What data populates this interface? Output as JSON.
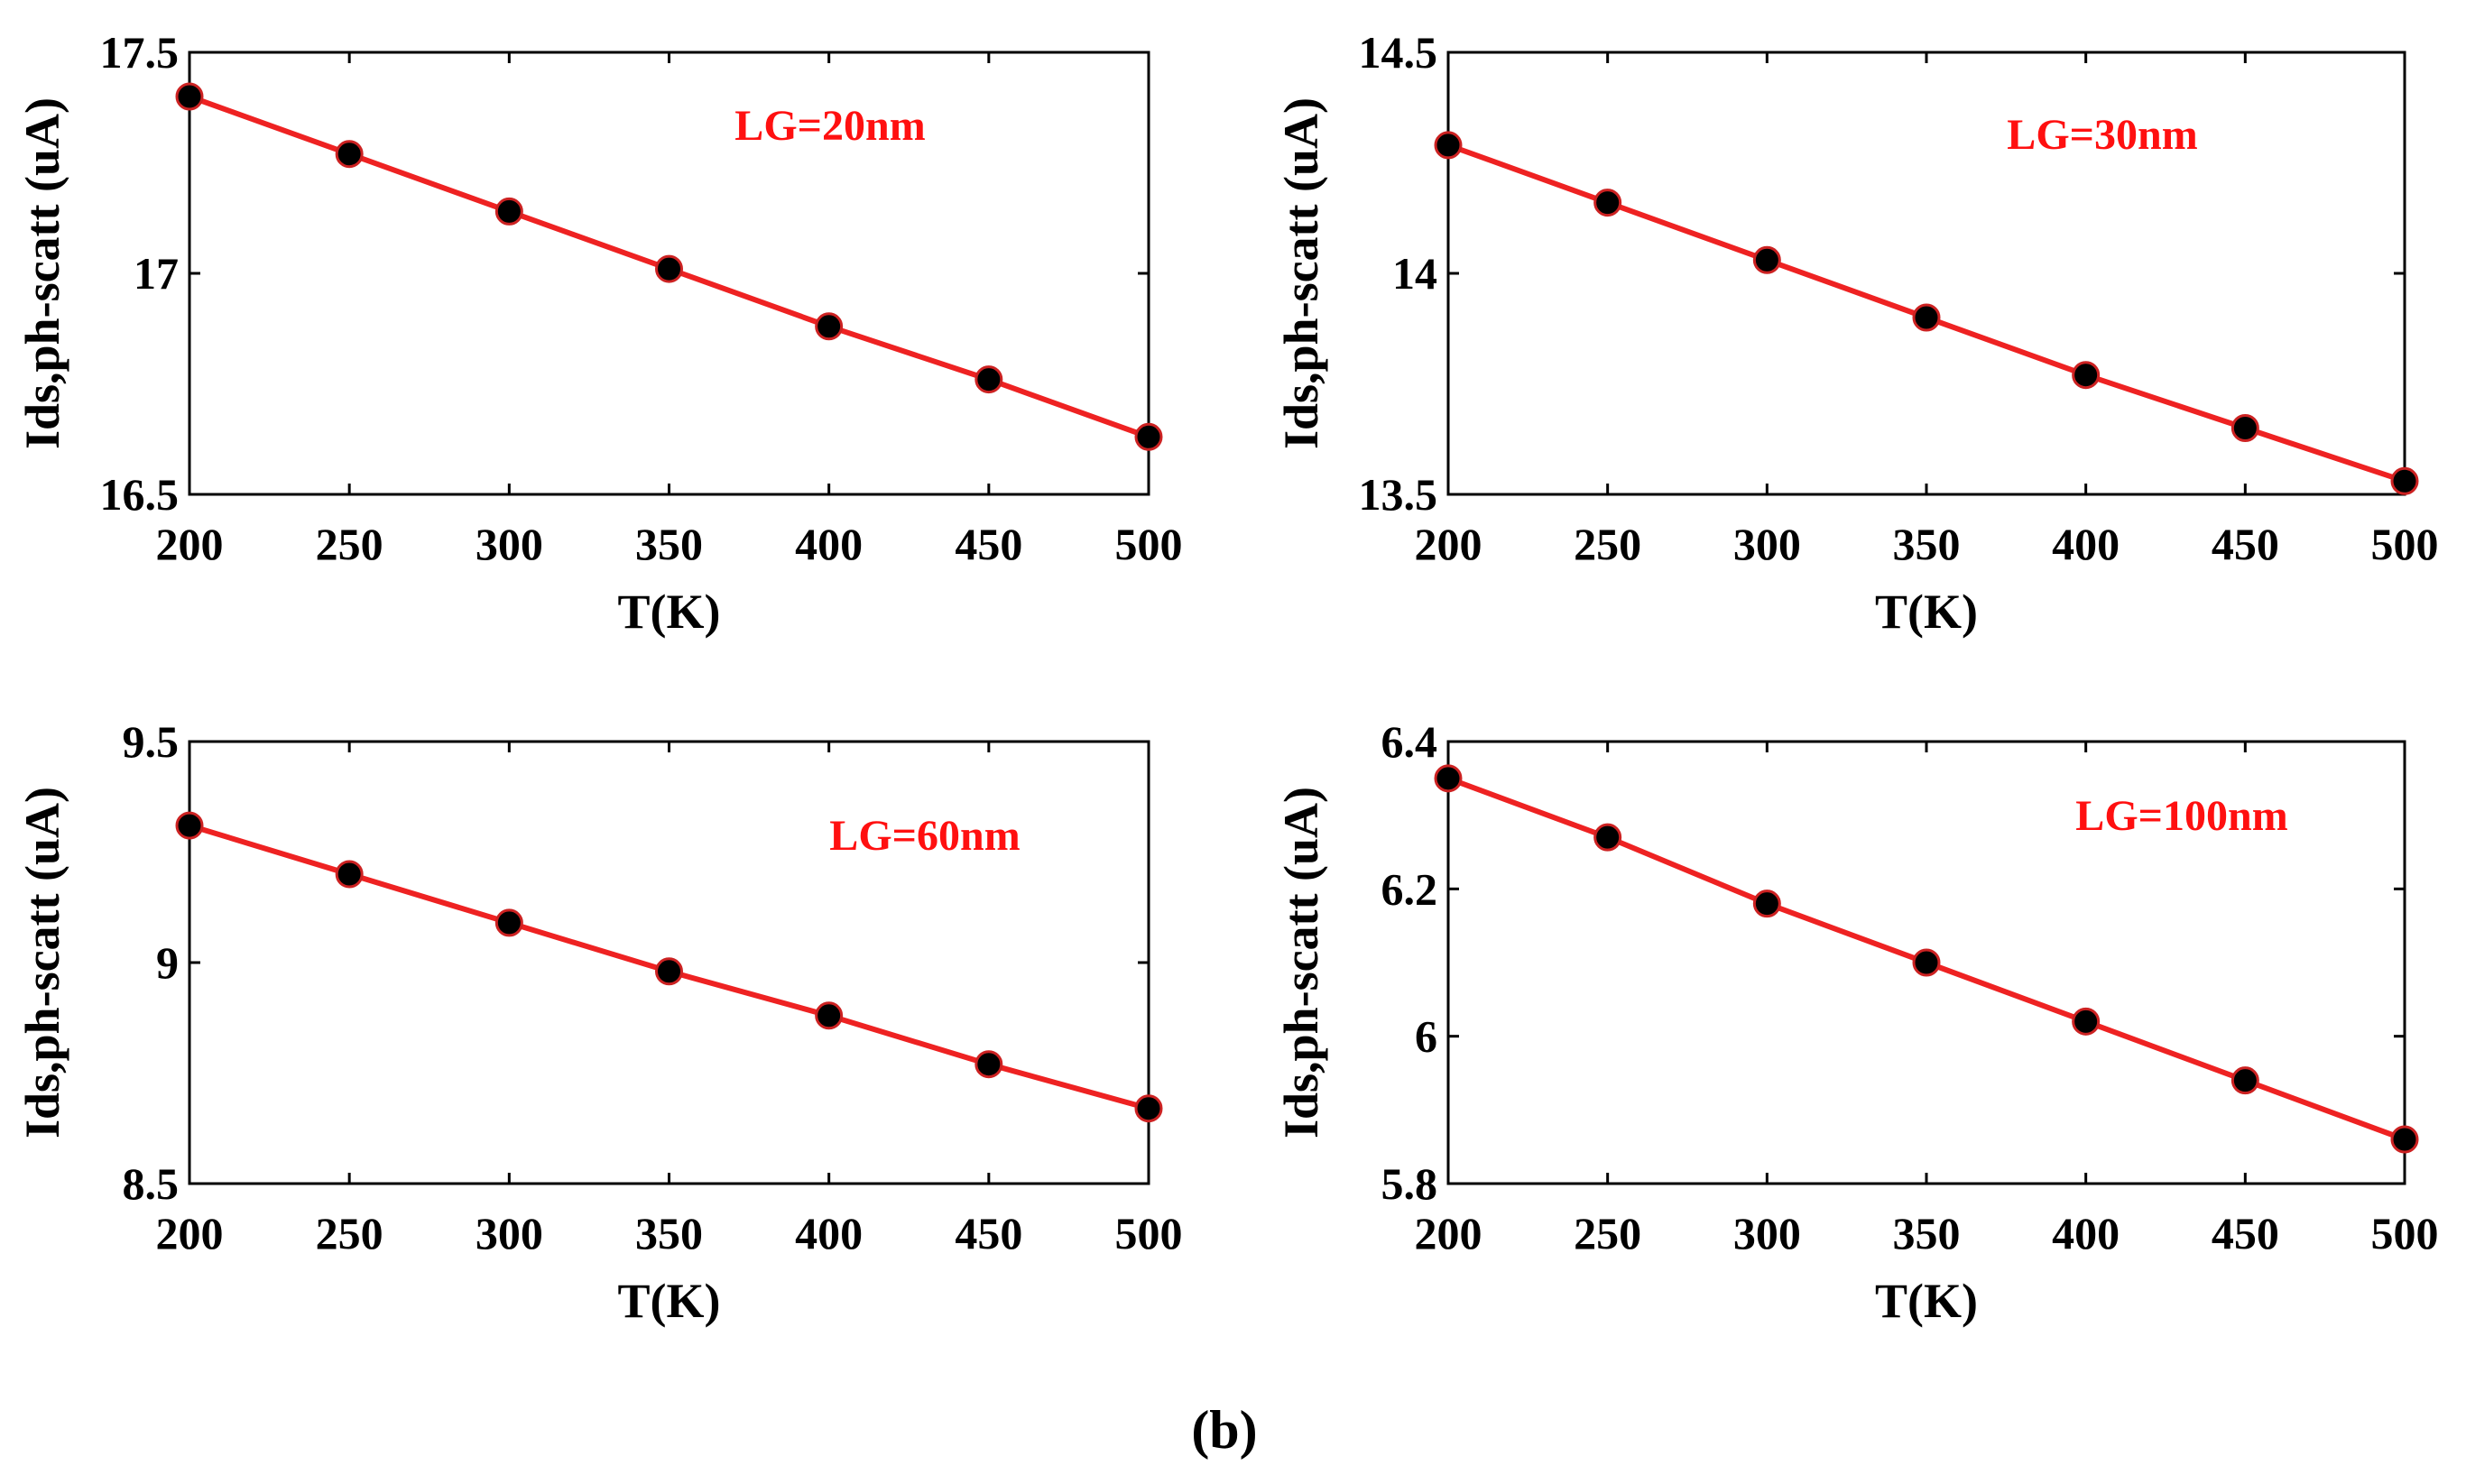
{
  "caption": "(b)",
  "chart_data": [
    {
      "type": "line",
      "annotation": "LG=20nm",
      "xlabel": "T(K)",
      "ylabel": "Ids,ph-scatt (uA)",
      "xlim": [
        200,
        500
      ],
      "ylim": [
        16.5,
        17.5
      ],
      "xticks": [
        200,
        250,
        300,
        350,
        400,
        450,
        500
      ],
      "xtick_labels": [
        "200",
        "250",
        "300",
        "350",
        "400",
        "450",
        "500"
      ],
      "yticks": [
        16.5,
        17,
        17.5
      ],
      "ytick_labels": [
        "16.5",
        "17",
        "17.5"
      ],
      "x": [
        200,
        250,
        300,
        350,
        400,
        450,
        500
      ],
      "y": [
        17.4,
        17.27,
        17.14,
        17.01,
        16.88,
        16.76,
        16.63
      ],
      "line_color": "#ee2222",
      "marker_color": "#000000"
    },
    {
      "type": "line",
      "annotation": "LG=30nm",
      "xlabel": "T(K)",
      "ylabel": "Ids,ph-scatt (uA)",
      "xlim": [
        200,
        500
      ],
      "ylim": [
        13.5,
        14.5
      ],
      "xticks": [
        200,
        250,
        300,
        350,
        400,
        450,
        500
      ],
      "xtick_labels": [
        "200",
        "250",
        "300",
        "350",
        "400",
        "450",
        "500"
      ],
      "yticks": [
        13.5,
        14,
        14.5
      ],
      "ytick_labels": [
        "13.5",
        "14",
        "14.5"
      ],
      "x": [
        200,
        250,
        300,
        350,
        400,
        450,
        500
      ],
      "y": [
        14.29,
        14.16,
        14.03,
        13.9,
        13.77,
        13.65,
        13.53
      ],
      "line_color": "#ee2222",
      "marker_color": "#000000"
    },
    {
      "type": "line",
      "annotation": "LG=60nm",
      "xlabel": "T(K)",
      "ylabel": "Ids,ph-scatt (uA)",
      "xlim": [
        200,
        500
      ],
      "ylim": [
        8.5,
        9.5
      ],
      "xticks": [
        200,
        250,
        300,
        350,
        400,
        450,
        500
      ],
      "xtick_labels": [
        "200",
        "250",
        "300",
        "350",
        "400",
        "450",
        "500"
      ],
      "yticks": [
        8.5,
        9,
        9.5
      ],
      "ytick_labels": [
        "8.5",
        "9",
        "9.5"
      ],
      "x": [
        200,
        250,
        300,
        350,
        400,
        450,
        500
      ],
      "y": [
        9.31,
        9.2,
        9.09,
        8.98,
        8.88,
        8.77,
        8.67
      ],
      "line_color": "#ee2222",
      "marker_color": "#000000"
    },
    {
      "type": "line",
      "annotation": "LG=100nm",
      "xlabel": "T(K)",
      "ylabel": "Ids,ph-scatt (uA)",
      "xlim": [
        200,
        500
      ],
      "ylim": [
        5.8,
        6.4
      ],
      "xticks": [
        200,
        250,
        300,
        350,
        400,
        450,
        500
      ],
      "xtick_labels": [
        "200",
        "250",
        "300",
        "350",
        "400",
        "450",
        "500"
      ],
      "yticks": [
        5.8,
        6,
        6.2,
        6.4
      ],
      "ytick_labels": [
        "5.8",
        "6",
        "6.2",
        "6.4"
      ],
      "x": [
        200,
        250,
        300,
        350,
        400,
        450,
        500
      ],
      "y": [
        6.35,
        6.27,
        6.18,
        6.1,
        6.02,
        5.94,
        5.86
      ],
      "line_color": "#ee2222",
      "marker_color": "#000000"
    }
  ]
}
